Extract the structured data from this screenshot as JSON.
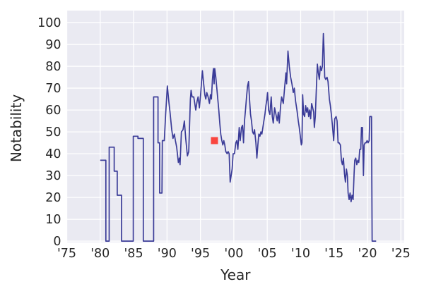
{
  "figure": {
    "background": "#ffffff",
    "plot_background": "#eaeaf2",
    "grid_color": "#ffffff",
    "tick_color": "#262626",
    "line_color": "#3b3c98",
    "marker_color": "#f9453f"
  },
  "chart_data": {
    "type": "line",
    "title": "",
    "xlabel": "Year",
    "ylabel": "Notability",
    "grid": true,
    "legend": "none",
    "xlim": [
      1975,
      2025.5
    ],
    "ylim": [
      -0.6,
      105.5
    ],
    "x_ticks": [
      {
        "value": 1975,
        "label": "'75"
      },
      {
        "value": 1980,
        "label": "'80"
      },
      {
        "value": 1985,
        "label": "'85"
      },
      {
        "value": 1990,
        "label": "'90"
      },
      {
        "value": 1995,
        "label": "'95"
      },
      {
        "value": 2000,
        "label": "'00"
      },
      {
        "value": 2005,
        "label": "'05"
      },
      {
        "value": 2010,
        "label": "'10"
      },
      {
        "value": 2015,
        "label": "'15"
      },
      {
        "value": 2020,
        "label": "'20"
      },
      {
        "value": 2025,
        "label": "'25"
      }
    ],
    "y_ticks": [
      0,
      10,
      20,
      30,
      40,
      50,
      60,
      70,
      80,
      90,
      100
    ],
    "series": [
      {
        "name": "notability-over-time",
        "color": "#3b3c98",
        "points": [
          [
            1980.0,
            37
          ],
          [
            1980.85,
            37
          ],
          [
            1980.85,
            0
          ],
          [
            1981.35,
            0
          ],
          [
            1981.35,
            43
          ],
          [
            1982.1,
            43
          ],
          [
            1982.1,
            32
          ],
          [
            1982.55,
            32
          ],
          [
            1982.55,
            21
          ],
          [
            1983.2,
            21
          ],
          [
            1983.2,
            0
          ],
          [
            1984.95,
            0
          ],
          [
            1984.95,
            48
          ],
          [
            1985.65,
            48
          ],
          [
            1985.65,
            47
          ],
          [
            1986.45,
            47
          ],
          [
            1986.45,
            0
          ],
          [
            1988.0,
            0
          ],
          [
            1988.0,
            66
          ],
          [
            1988.65,
            66
          ],
          [
            1988.65,
            45
          ],
          [
            1988.9,
            45
          ],
          [
            1988.9,
            22
          ],
          [
            1989.25,
            22
          ],
          [
            1989.3,
            46
          ],
          [
            1989.6,
            46
          ],
          [
            1989.8,
            58
          ],
          [
            1990.05,
            71
          ],
          [
            1990.3,
            63
          ],
          [
            1990.45,
            59
          ],
          [
            1990.7,
            51
          ],
          [
            1990.9,
            47
          ],
          [
            1991.1,
            49
          ],
          [
            1991.25,
            46
          ],
          [
            1991.45,
            43
          ],
          [
            1991.7,
            36
          ],
          [
            1991.85,
            38
          ],
          [
            1991.95,
            35
          ],
          [
            1992.15,
            50
          ],
          [
            1992.4,
            51
          ],
          [
            1992.6,
            55
          ],
          [
            1992.8,
            47
          ],
          [
            1993.05,
            39
          ],
          [
            1993.25,
            41
          ],
          [
            1993.5,
            65
          ],
          [
            1993.6,
            69
          ],
          [
            1993.75,
            66
          ],
          [
            1994.0,
            66
          ],
          [
            1994.15,
            63
          ],
          [
            1994.3,
            60
          ],
          [
            1994.5,
            64
          ],
          [
            1994.65,
            66
          ],
          [
            1994.85,
            61
          ],
          [
            1995.05,
            68
          ],
          [
            1995.3,
            78
          ],
          [
            1995.45,
            73
          ],
          [
            1995.65,
            67
          ],
          [
            1995.8,
            65
          ],
          [
            1995.95,
            68
          ],
          [
            1996.15,
            66
          ],
          [
            1996.35,
            63
          ],
          [
            1996.5,
            67
          ],
          [
            1996.65,
            65
          ],
          [
            1996.8,
            74
          ],
          [
            1996.95,
            79
          ],
          [
            1997.05,
            72
          ],
          [
            1997.15,
            79
          ],
          [
            1997.3,
            75
          ],
          [
            1997.45,
            70
          ],
          [
            1997.6,
            65
          ],
          [
            1997.75,
            60
          ],
          [
            1997.9,
            54
          ],
          [
            1998.05,
            49
          ],
          [
            1998.2,
            46
          ],
          [
            1998.35,
            44
          ],
          [
            1998.5,
            46
          ],
          [
            1998.65,
            44
          ],
          [
            1998.8,
            41
          ],
          [
            1999.0,
            40
          ],
          [
            1999.15,
            41
          ],
          [
            1999.3,
            40
          ],
          [
            1999.45,
            27
          ],
          [
            1999.6,
            30
          ],
          [
            1999.75,
            33
          ],
          [
            1999.9,
            40
          ],
          [
            2000.1,
            40
          ],
          [
            2000.3,
            45
          ],
          [
            2000.45,
            46
          ],
          [
            2000.6,
            42
          ],
          [
            2000.8,
            52
          ],
          [
            2000.95,
            46
          ],
          [
            2001.15,
            52
          ],
          [
            2001.3,
            53
          ],
          [
            2001.45,
            45
          ],
          [
            2001.6,
            55
          ],
          [
            2001.75,
            60
          ],
          [
            2001.9,
            66
          ],
          [
            2002.05,
            71
          ],
          [
            2002.2,
            73
          ],
          [
            2002.35,
            65
          ],
          [
            2002.5,
            58
          ],
          [
            2002.65,
            55
          ],
          [
            2002.8,
            50
          ],
          [
            2002.95,
            49
          ],
          [
            2003.1,
            51
          ],
          [
            2003.3,
            45
          ],
          [
            2003.45,
            38
          ],
          [
            2003.6,
            44
          ],
          [
            2003.75,
            49
          ],
          [
            2003.9,
            48
          ],
          [
            2004.05,
            50
          ],
          [
            2004.2,
            49
          ],
          [
            2004.35,
            52
          ],
          [
            2004.5,
            55
          ],
          [
            2004.65,
            58
          ],
          [
            2004.8,
            62
          ],
          [
            2004.95,
            65
          ],
          [
            2005.05,
            68
          ],
          [
            2005.2,
            60
          ],
          [
            2005.4,
            58
          ],
          [
            2005.6,
            66
          ],
          [
            2005.75,
            57
          ],
          [
            2005.9,
            54
          ],
          [
            2006.1,
            61
          ],
          [
            2006.3,
            58
          ],
          [
            2006.5,
            55
          ],
          [
            2006.65,
            59
          ],
          [
            2006.8,
            54
          ],
          [
            2007.0,
            62
          ],
          [
            2007.15,
            66
          ],
          [
            2007.4,
            63
          ],
          [
            2007.6,
            70
          ],
          [
            2007.8,
            77
          ],
          [
            2007.9,
            72
          ],
          [
            2008.1,
            87
          ],
          [
            2008.3,
            80
          ],
          [
            2008.5,
            75
          ],
          [
            2008.7,
            72
          ],
          [
            2008.9,
            68
          ],
          [
            2009.05,
            70
          ],
          [
            2009.25,
            64
          ],
          [
            2009.45,
            60
          ],
          [
            2009.65,
            55
          ],
          [
            2009.8,
            52
          ],
          [
            2009.95,
            48
          ],
          [
            2010.1,
            44
          ],
          [
            2010.2,
            45
          ],
          [
            2010.3,
            67
          ],
          [
            2010.45,
            58
          ],
          [
            2010.6,
            57
          ],
          [
            2010.75,
            62
          ],
          [
            2010.9,
            59
          ],
          [
            2011.05,
            61
          ],
          [
            2011.2,
            57
          ],
          [
            2011.35,
            60
          ],
          [
            2011.5,
            56
          ],
          [
            2011.65,
            63
          ],
          [
            2011.8,
            61
          ],
          [
            2011.95,
            59
          ],
          [
            2012.05,
            52
          ],
          [
            2012.2,
            57
          ],
          [
            2012.35,
            70
          ],
          [
            2012.5,
            81
          ],
          [
            2012.65,
            77
          ],
          [
            2012.8,
            74
          ],
          [
            2012.95,
            80
          ],
          [
            2013.1,
            78
          ],
          [
            2013.25,
            80
          ],
          [
            2013.4,
            95
          ],
          [
            2013.5,
            88
          ],
          [
            2013.6,
            75
          ],
          [
            2013.75,
            74
          ],
          [
            2013.95,
            75
          ],
          [
            2014.1,
            73
          ],
          [
            2014.3,
            65
          ],
          [
            2014.45,
            62
          ],
          [
            2014.6,
            58
          ],
          [
            2014.75,
            53
          ],
          [
            2014.95,
            46
          ],
          [
            2015.1,
            56
          ],
          [
            2015.3,
            57
          ],
          [
            2015.45,
            55
          ],
          [
            2015.6,
            45
          ],
          [
            2015.75,
            45
          ],
          [
            2015.95,
            44
          ],
          [
            2016.1,
            37
          ],
          [
            2016.25,
            35
          ],
          [
            2016.4,
            38
          ],
          [
            2016.55,
            31
          ],
          [
            2016.7,
            27
          ],
          [
            2016.85,
            33
          ],
          [
            2017.0,
            30
          ],
          [
            2017.1,
            22
          ],
          [
            2017.25,
            19
          ],
          [
            2017.4,
            22
          ],
          [
            2017.55,
            18
          ],
          [
            2017.7,
            21
          ],
          [
            2017.85,
            19
          ],
          [
            2018.0,
            31
          ],
          [
            2018.1,
            37
          ],
          [
            2018.25,
            38
          ],
          [
            2018.4,
            35
          ],
          [
            2018.55,
            37
          ],
          [
            2018.7,
            36
          ],
          [
            2018.85,
            42
          ],
          [
            2019.0,
            42
          ],
          [
            2019.1,
            52
          ],
          [
            2019.25,
            52
          ],
          [
            2019.4,
            30
          ],
          [
            2019.5,
            44
          ],
          [
            2019.65,
            45
          ],
          [
            2019.8,
            45
          ],
          [
            2019.95,
            46
          ],
          [
            2020.1,
            45
          ],
          [
            2020.25,
            46
          ],
          [
            2020.35,
            57
          ],
          [
            2020.6,
            57
          ],
          [
            2020.7,
            0
          ],
          [
            2021.3,
            0
          ]
        ]
      }
    ],
    "markers": [
      {
        "name": "highlight-point",
        "shape": "square",
        "x": 1997.1,
        "y": 46,
        "color": "#f9453f",
        "size": 10
      }
    ]
  }
}
